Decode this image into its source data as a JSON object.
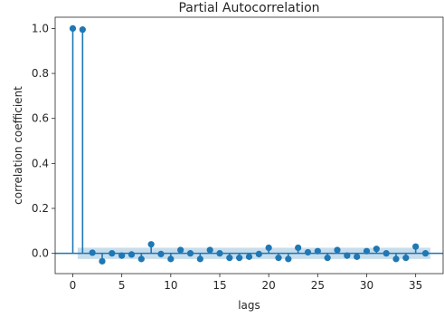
{
  "chart_data": {
    "type": "stem",
    "title": "Partial Autocorrelation",
    "xlabel": "lags",
    "ylabel": "correlation coefficient",
    "xlim": [
      -1.8,
      37.8
    ],
    "ylim": [
      -0.09,
      1.05
    ],
    "x_ticks": [
      0,
      5,
      10,
      15,
      20,
      25,
      30,
      35
    ],
    "y_ticks": [
      0.0,
      0.2,
      0.4,
      0.6,
      0.8,
      1.0
    ],
    "y_tick_labels": [
      "0.0",
      "0.2",
      "0.4",
      "0.6",
      "0.8",
      "1.0"
    ],
    "lags": [
      0,
      1,
      2,
      3,
      4,
      5,
      6,
      7,
      8,
      9,
      10,
      11,
      12,
      13,
      14,
      15,
      16,
      17,
      18,
      19,
      20,
      21,
      22,
      23,
      24,
      25,
      26,
      27,
      28,
      29,
      30,
      31,
      32,
      33,
      34,
      35,
      36
    ],
    "values": [
      1.0,
      0.995,
      0.003,
      -0.035,
      0.0,
      -0.01,
      -0.005,
      -0.025,
      0.04,
      -0.003,
      -0.025,
      0.015,
      0.0,
      -0.025,
      0.015,
      0.0,
      -0.02,
      -0.02,
      -0.015,
      -0.003,
      0.025,
      -0.02,
      -0.025,
      0.025,
      0.005,
      0.01,
      -0.02,
      0.015,
      -0.01,
      -0.015,
      0.01,
      0.02,
      0.0,
      -0.025,
      -0.02,
      0.03,
      0.0
    ],
    "confidence_band": [
      -0.025,
      0.025
    ],
    "colors": {
      "stem": "#1f77b4",
      "band": "#1f77b4",
      "zero_line": "#1f77b4",
      "axis": "#262626"
    }
  }
}
